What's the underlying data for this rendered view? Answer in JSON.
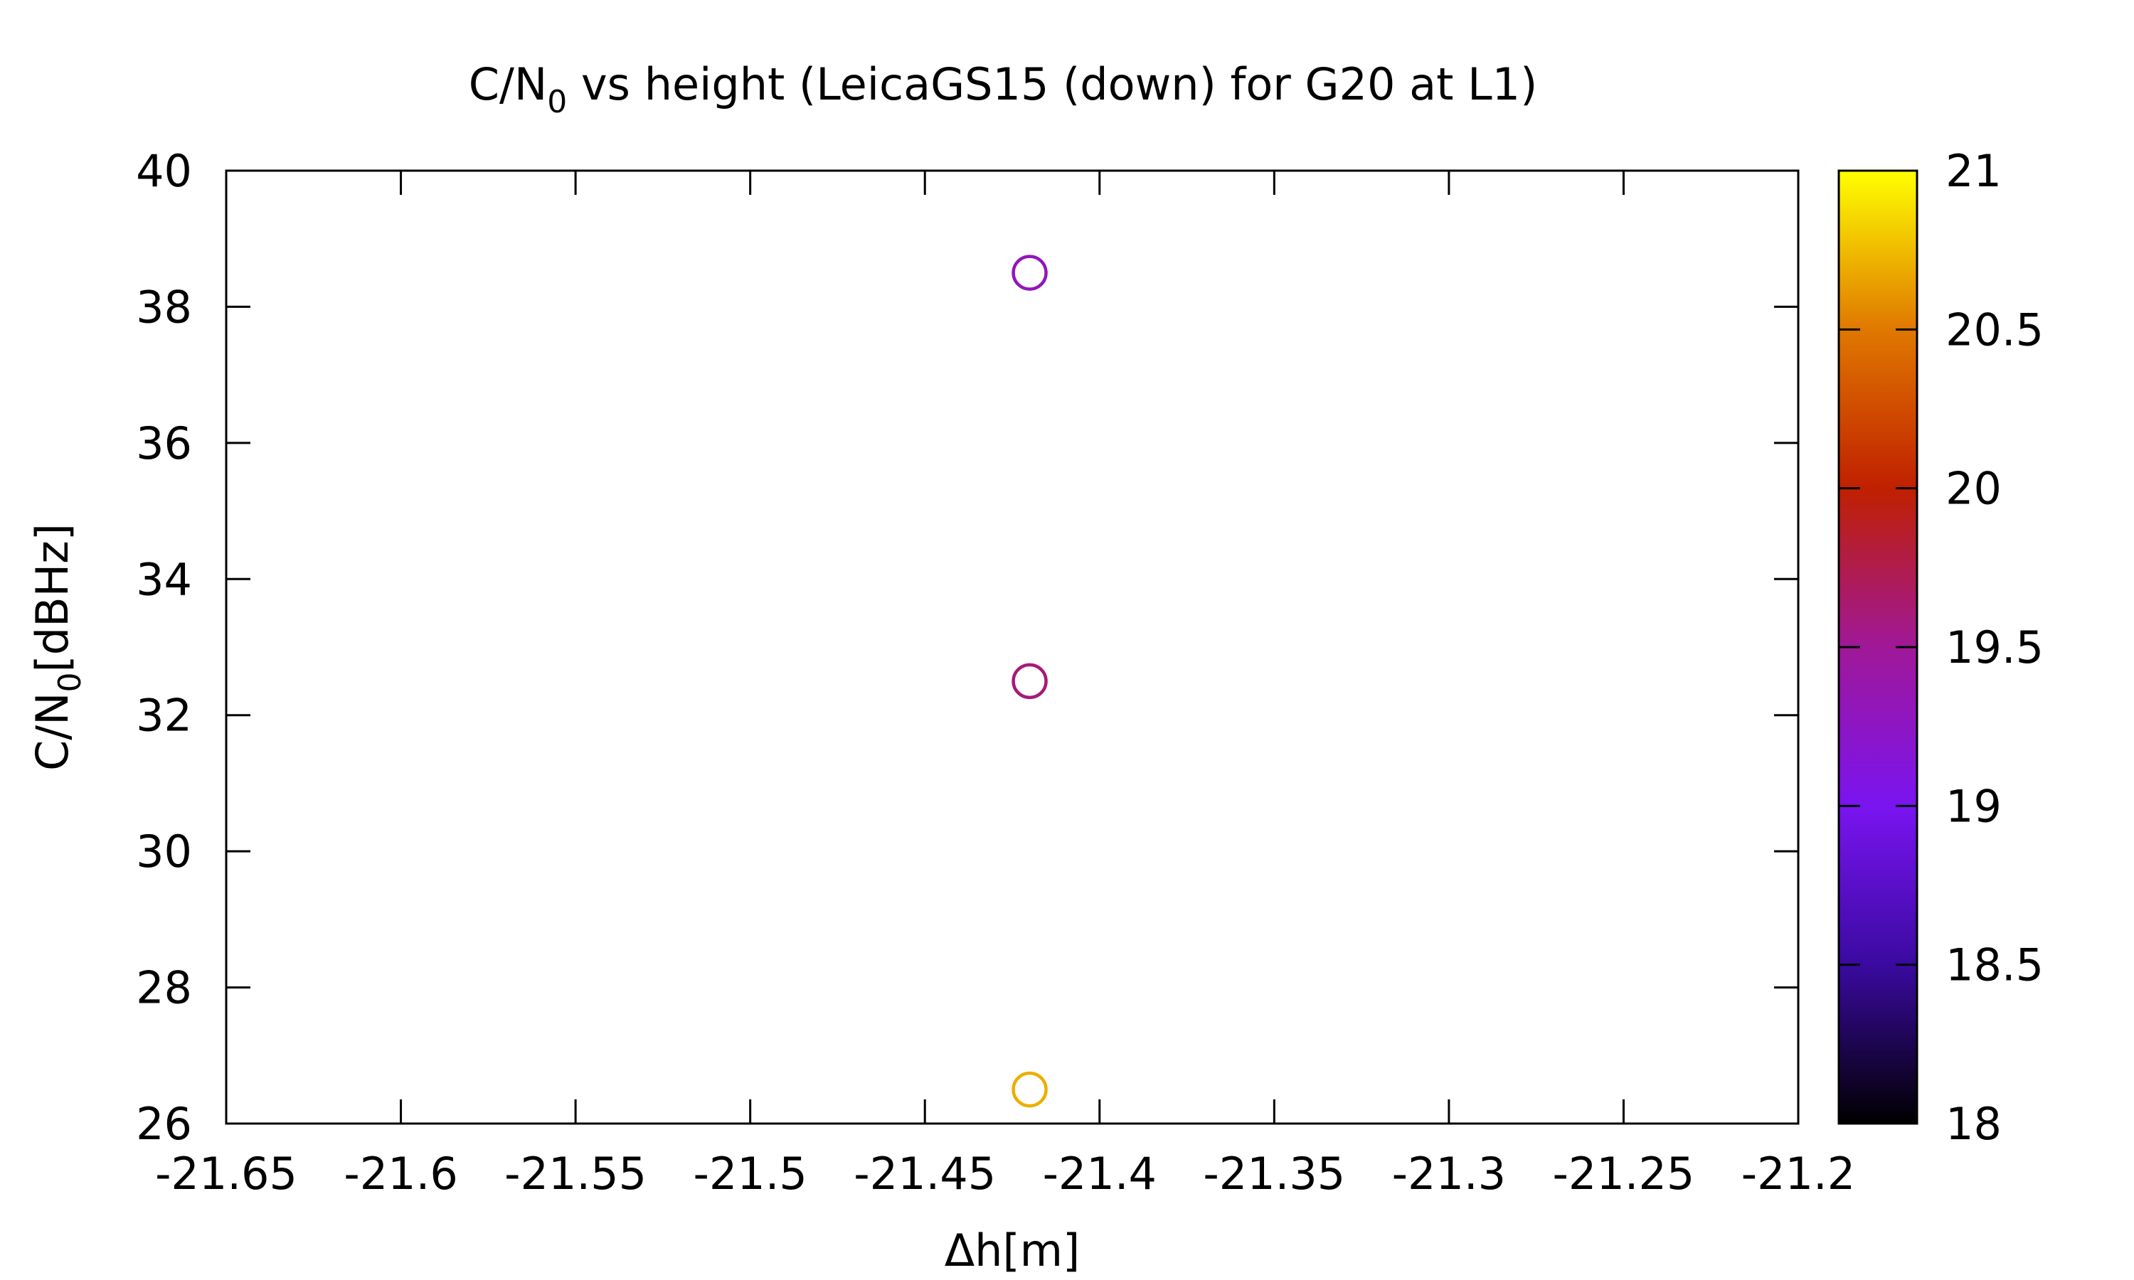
{
  "chart_data": {
    "type": "scatter",
    "title": {
      "prefix": "C/N",
      "subscript": "0",
      "suffix": " vs height (LeicaGS15 (down) for G20 at L1)"
    },
    "xlabel": "Δh[m]",
    "ylabel": {
      "prefix": "C/N",
      "subscript": "0",
      "suffix": "[dBHz]"
    },
    "xlim": [
      -21.65,
      -21.2
    ],
    "ylim": [
      26,
      40
    ],
    "xticks": [
      -21.65,
      -21.6,
      -21.55,
      -21.5,
      -21.45,
      -21.4,
      -21.35,
      -21.3,
      -21.25,
      -21.2
    ],
    "xtick_labels": [
      "-21.65",
      "-21.6",
      "-21.55",
      "-21.5",
      "-21.45",
      "-21.4",
      "-21.35",
      "-21.3",
      "-21.25",
      "-21.2"
    ],
    "yticks": [
      26,
      28,
      30,
      32,
      34,
      36,
      38,
      40
    ],
    "ytick_labels": [
      "26",
      "28",
      "30",
      "32",
      "34",
      "36",
      "38",
      "40"
    ],
    "grid": false,
    "marker": "open-circle",
    "points": [
      {
        "x": -21.42,
        "y": 38.5,
        "c": 19.3
      },
      {
        "x": -21.42,
        "y": 32.5,
        "c": 19.6
      },
      {
        "x": -21.42,
        "y": 26.5,
        "c": 20.7
      }
    ],
    "colorbar": {
      "range": [
        18,
        21
      ],
      "ticks": [
        18,
        18.5,
        19,
        19.5,
        20,
        20.5,
        21
      ],
      "tick_labels": [
        "18",
        "18.5",
        "19",
        "19.5",
        "20",
        "20.5",
        "21"
      ],
      "palette": [
        "#000000",
        "#3a0aa0",
        "#7a14f0",
        "#a01898",
        "#c02000",
        "#e07800",
        "#ffff00"
      ]
    }
  }
}
